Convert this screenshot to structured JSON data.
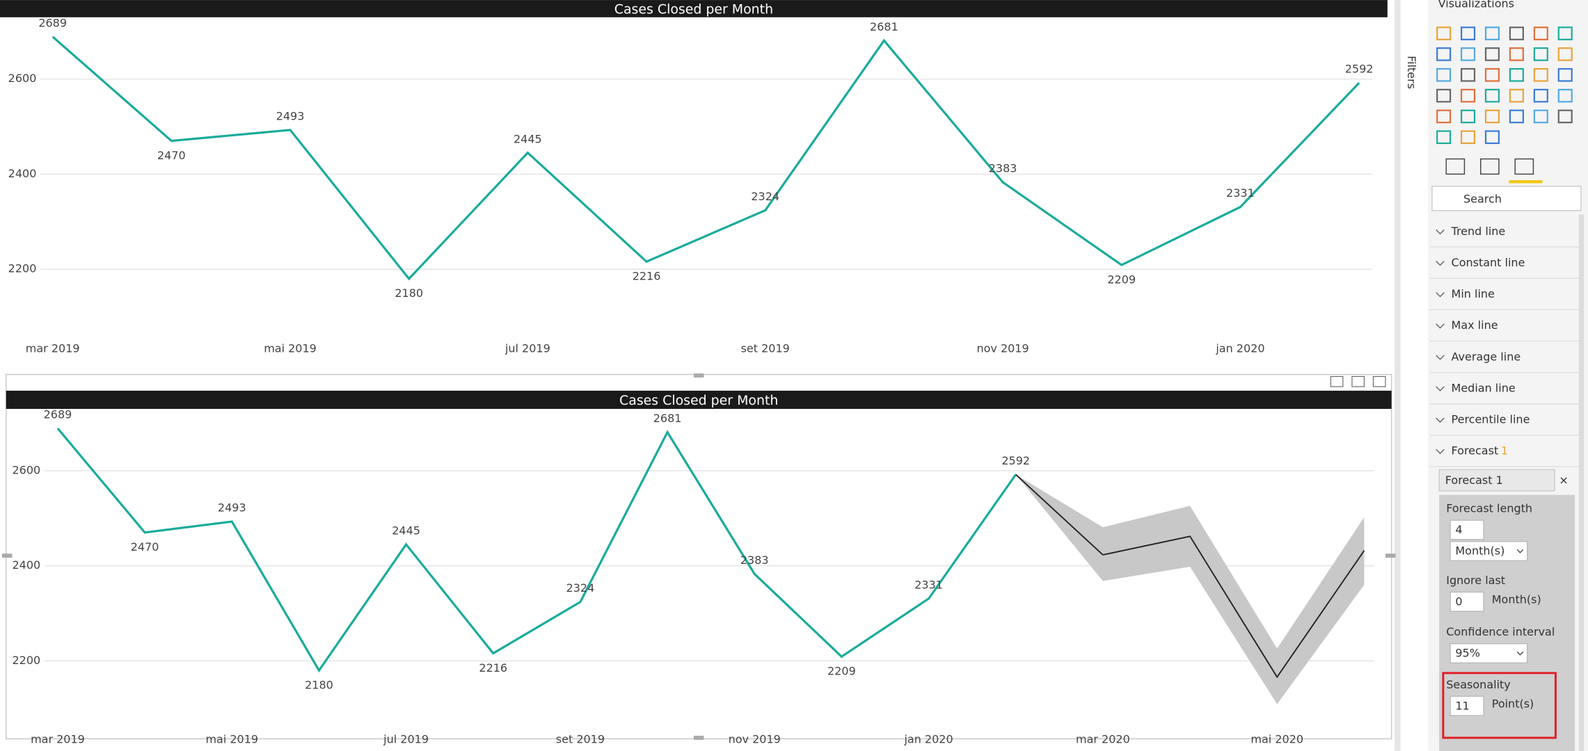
{
  "chart_data": [
    {
      "type": "line",
      "title": "Cases Closed per Month",
      "categories": [
        "mar 2019",
        null,
        "mai 2019",
        null,
        "jul 2019",
        null,
        "set 2019",
        null,
        "nov 2019",
        null,
        "jan 2020",
        null
      ],
      "series": [
        {
          "color": "#1aab9b",
          "values": [
            2689,
            2470,
            2493,
            2180,
            2445,
            2216,
            2324,
            2681,
            2383,
            2209,
            2331,
            2592
          ]
        }
      ],
      "ylim": [
        2100,
        2730
      ],
      "yticks": [
        2200,
        2400,
        2600
      ],
      "grid": true
    },
    {
      "type": "line",
      "title": "Cases Closed per Month",
      "categories": [
        "mar 2019",
        null,
        "mai 2019",
        null,
        "jul 2019",
        null,
        "set 2019",
        null,
        "nov 2019",
        null,
        "jan 2020",
        null,
        "mar 2020",
        null,
        "mai 2020",
        null
      ],
      "series": [
        {
          "color": "#1aab9b",
          "values": [
            2689,
            2470,
            2493,
            2180,
            2445,
            2216,
            2324,
            2681,
            2383,
            2209,
            2331,
            2592,
            null,
            null,
            null,
            null
          ]
        },
        {
          "color": "#222222",
          "values": [
            null,
            null,
            null,
            null,
            null,
            null,
            null,
            null,
            null,
            null,
            null,
            null,
            2423,
            2462,
            2166,
            2432
          ]
        }
      ],
      "band": {
        "color": "#c8c8c8",
        "upper": [
          null,
          null,
          null,
          null,
          null,
          null,
          null,
          null,
          null,
          null,
          null,
          null,
          2481,
          2526,
          2226,
          2502
        ],
        "lower": [
          null,
          null,
          null,
          null,
          null,
          null,
          null,
          null,
          null,
          null,
          null,
          null,
          2368,
          2398,
          2109,
          2360
        ]
      },
      "ylim": [
        2100,
        2730
      ],
      "yticks": [
        2200,
        2400,
        2600
      ],
      "grid": true
    }
  ],
  "panel": {
    "filters": "Filters",
    "title": "Visualizations",
    "search": "Search",
    "items": [
      "Trend line",
      "Constant line",
      "Min line",
      "Max line",
      "Average line",
      "Median line",
      "Percentile line",
      "Forecast"
    ],
    "forecast_count": "1",
    "forecast_name": "Forecast 1",
    "fields": [
      {
        "label": "Forecast length",
        "value": "4",
        "unit": "Month(s)"
      },
      {
        "label": "Ignore last",
        "value": "0",
        "unit": "Month(s)"
      },
      {
        "label": "Confidence interval",
        "value": "95%"
      },
      {
        "label": "Seasonality",
        "value": "11",
        "unit": "Point(s)"
      }
    ]
  }
}
